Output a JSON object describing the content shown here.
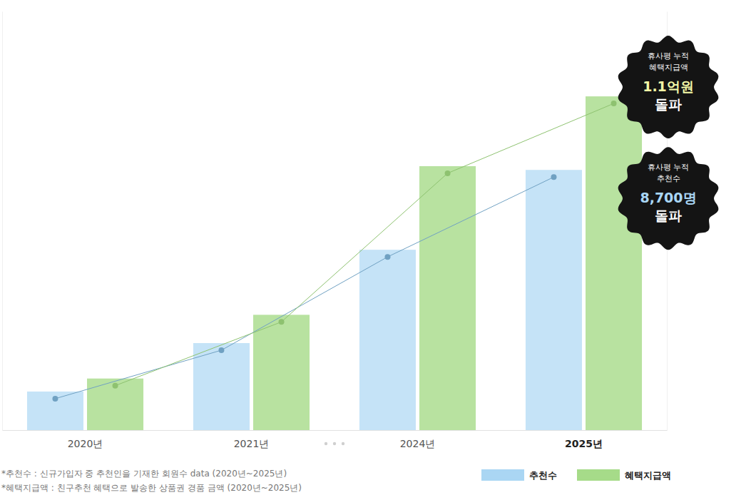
{
  "chart_data": {
    "type": "bar",
    "categories": [
      "2020년",
      "2021년",
      "2024년",
      "2025년"
    ],
    "series": [
      {
        "name": "추천수",
        "color": "#c5e3f7",
        "values": [
          1290,
          2910,
          6030,
          8700
        ],
        "marker": "circle",
        "line_style": "solid"
      },
      {
        "name": "혜택지급액",
        "color": "#b8e2a0",
        "values": [
          0.17,
          0.38,
          0.87,
          1.1
        ],
        "axis": "y2",
        "marker": "circle",
        "line_style": "solid"
      }
    ],
    "ylim": [
      0,
      14000
    ],
    "y2lim": [
      0,
      1.38
    ],
    "tick_labels": "x",
    "legend": "bottom-right",
    "annotations": [
      {
        "lines": [
          "휴사평 누적",
          "혜택지급액"
        ],
        "value": 1.1,
        "value_label": "1.1억원",
        "suffix": "돌파",
        "axis": "y2"
      },
      {
        "lines": [
          "휴사평 누적",
          "추천수"
        ],
        "value": 8700,
        "value_label": "8,700명",
        "suffix": "돌파",
        "axis": "y"
      }
    ],
    "notes": [
      "*추천수 : 신규가입자 중 추천인을 기재한 회원수 data (2020년~2025년)",
      "*혜택지급액 : 친구추천 혜택으로 발송한 상품권 경품 금액 (2020년~2025년)"
    ]
  }
}
